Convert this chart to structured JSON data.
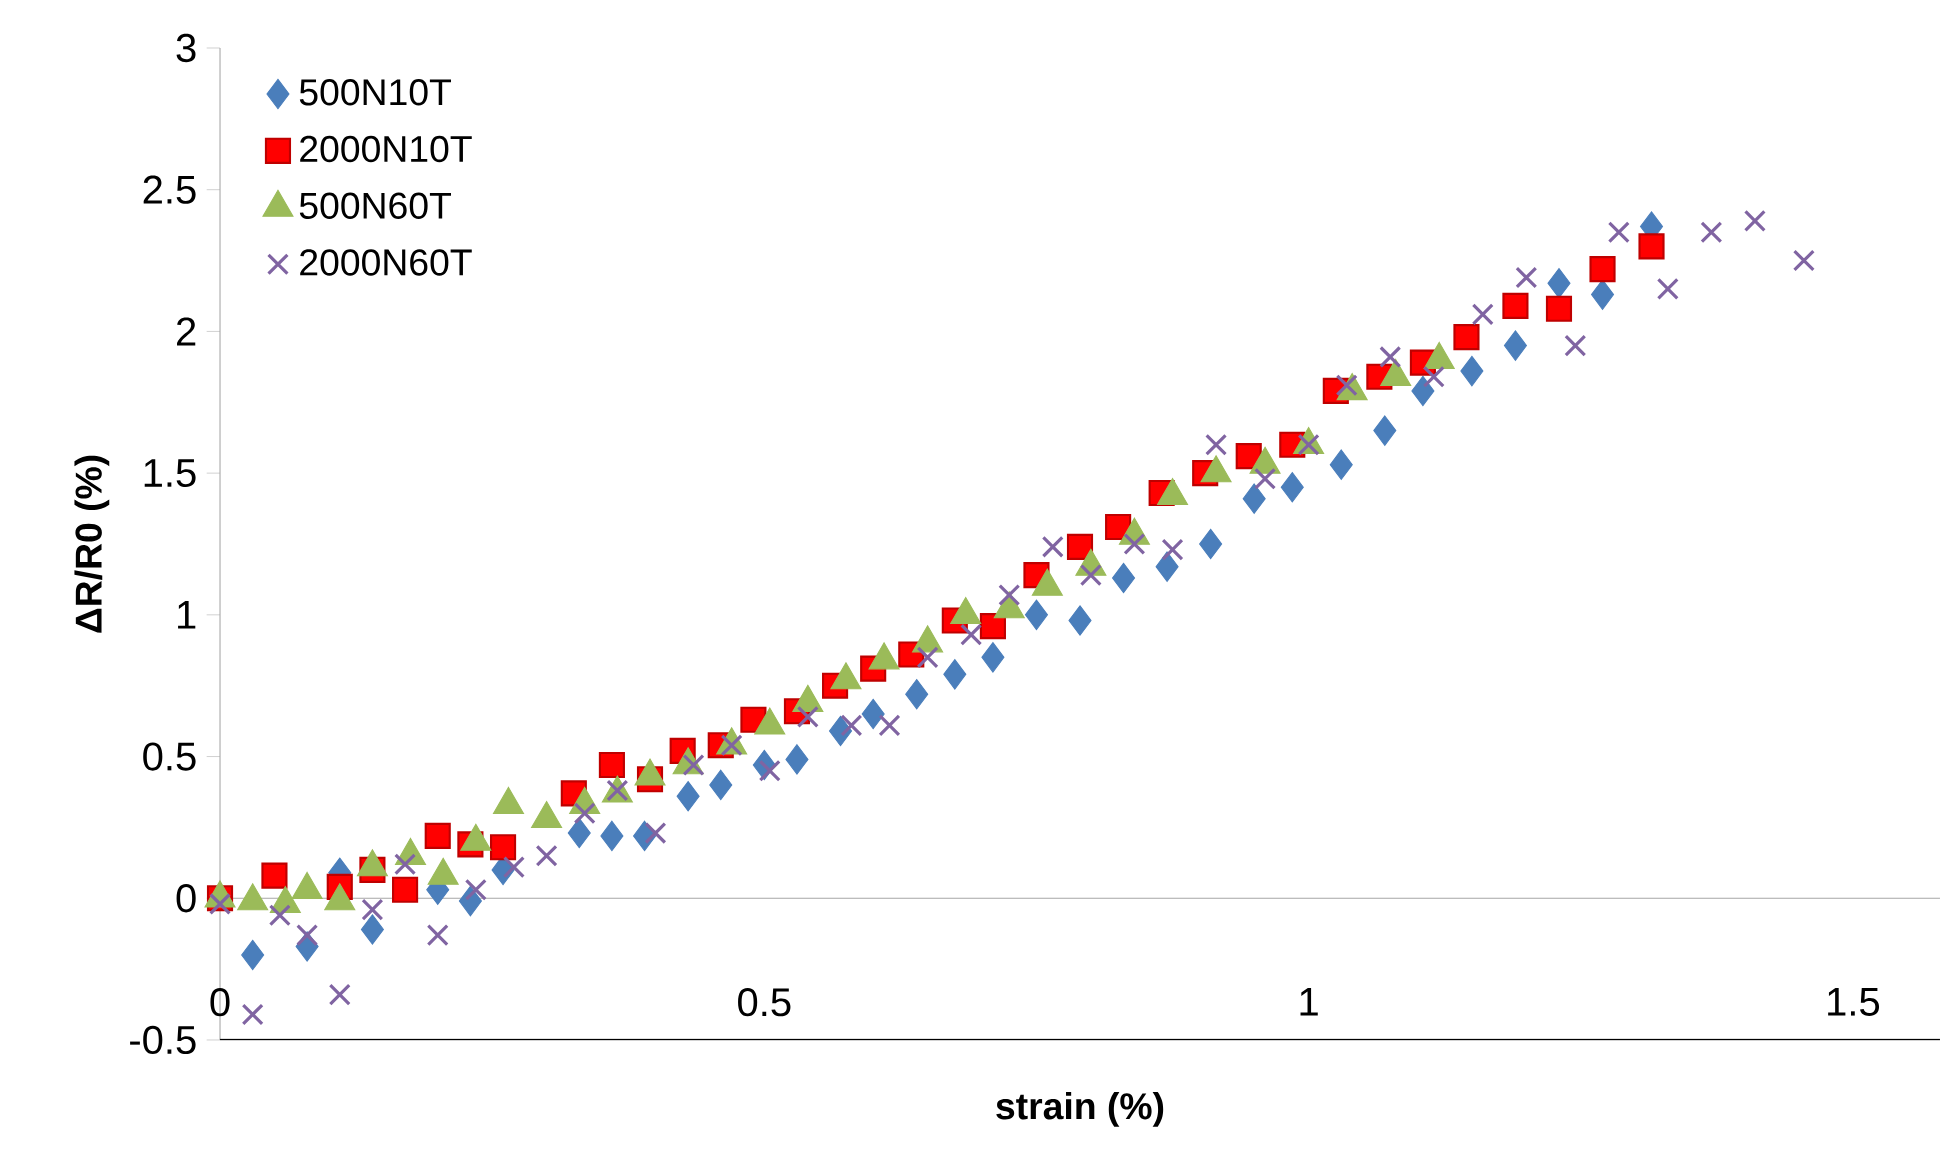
{
  "chart_data": {
    "type": "scatter",
    "xlabel": "strain (%)",
    "ylabel": "ΔR/R0 (%)",
    "xlim": [
      0,
      1.58
    ],
    "ylim": [
      -0.5,
      3
    ],
    "xticks": [
      0,
      0.5,
      1,
      1.5
    ],
    "yticks": [
      -0.5,
      0,
      0.5,
      1,
      1.5,
      2,
      2.5,
      3
    ],
    "ref_lines": [
      {
        "axis": "y",
        "value": 0,
        "color": "#a6a6a6"
      }
    ],
    "legend": "top left",
    "series": [
      {
        "name": "500N10T",
        "color": "#4a7ebb",
        "marker": "diamond",
        "x": [
          0.03,
          0.08,
          0.11,
          0.14,
          0.2,
          0.23,
          0.26,
          0.33,
          0.36,
          0.39,
          0.43,
          0.46,
          0.5,
          0.53,
          0.57,
          0.6,
          0.64,
          0.675,
          0.71,
          0.75,
          0.79,
          0.83,
          0.87,
          0.91,
          0.95,
          0.985,
          1.03,
          1.07,
          1.105,
          1.15,
          1.19,
          1.23,
          1.27,
          1.315
        ],
        "values": [
          -0.2,
          -0.17,
          0.09,
          -0.11,
          0.03,
          -0.01,
          0.1,
          0.23,
          0.22,
          0.22,
          0.36,
          0.4,
          0.47,
          0.49,
          0.59,
          0.65,
          0.72,
          0.79,
          0.85,
          1.0,
          0.98,
          1.13,
          1.17,
          1.25,
          1.41,
          1.45,
          1.53,
          1.65,
          1.79,
          1.86,
          1.95,
          2.17,
          2.13,
          2.37
        ]
      },
      {
        "name": "2000N10T",
        "color": "#ff0000",
        "marker": "square",
        "x": [
          0,
          0.05,
          0.11,
          0.14,
          0.17,
          0.2,
          0.23,
          0.26,
          0.325,
          0.36,
          0.395,
          0.425,
          0.46,
          0.49,
          0.53,
          0.565,
          0.6,
          0.635,
          0.675,
          0.71,
          0.75,
          0.79,
          0.825,
          0.865,
          0.905,
          0.945,
          0.985,
          1.025,
          1.065,
          1.105,
          1.145,
          1.19,
          1.23,
          1.27,
          1.315
        ],
        "values": [
          0,
          0.08,
          0.04,
          0.1,
          0.03,
          0.22,
          0.19,
          0.18,
          0.37,
          0.47,
          0.42,
          0.52,
          0.54,
          0.63,
          0.66,
          0.75,
          0.81,
          0.86,
          0.98,
          0.96,
          1.14,
          1.24,
          1.31,
          1.43,
          1.5,
          1.56,
          1.6,
          1.79,
          1.84,
          1.89,
          1.98,
          2.09,
          2.08,
          2.22,
          2.3
        ]
      },
      {
        "name": "500N60T",
        "color": "#9bbb59",
        "marker": "triangle",
        "x": [
          0,
          0.03,
          0.06,
          0.08,
          0.11,
          0.14,
          0.175,
          0.205,
          0.235,
          0.265,
          0.3,
          0.335,
          0.365,
          0.395,
          0.43,
          0.47,
          0.505,
          0.54,
          0.575,
          0.61,
          0.65,
          0.685,
          0.725,
          0.76,
          0.8,
          0.84,
          0.875,
          0.915,
          0.96,
          1.0,
          1.04,
          1.08,
          1.12
        ],
        "values": [
          0,
          -0.01,
          -0.02,
          0.03,
          -0.01,
          0.11,
          0.15,
          0.08,
          0.2,
          0.33,
          0.28,
          0.33,
          0.37,
          0.43,
          0.47,
          0.54,
          0.61,
          0.69,
          0.77,
          0.84,
          0.9,
          1.0,
          1.02,
          1.1,
          1.17,
          1.28,
          1.42,
          1.5,
          1.53,
          1.6,
          1.79,
          1.84,
          1.9
        ]
      },
      {
        "name": "2000N60T",
        "color": "#8064a2",
        "marker": "cross",
        "x": [
          0,
          0.03,
          0.055,
          0.08,
          0.11,
          0.14,
          0.17,
          0.2,
          0.235,
          0.27,
          0.3,
          0.335,
          0.365,
          0.4,
          0.435,
          0.47,
          0.505,
          0.54,
          0.58,
          0.615,
          0.65,
          0.69,
          0.725,
          0.765,
          0.8,
          0.84,
          0.875,
          0.915,
          0.96,
          1.0,
          1.035,
          1.075,
          1.115,
          1.16,
          1.2,
          1.245,
          1.285,
          1.33,
          1.37,
          1.41,
          1.455
        ],
        "values": [
          -0.02,
          -0.41,
          -0.06,
          -0.13,
          -0.34,
          -0.04,
          0.12,
          -0.13,
          0.03,
          0.11,
          0.15,
          0.3,
          0.38,
          0.23,
          0.47,
          0.54,
          0.45,
          0.64,
          0.61,
          0.61,
          0.85,
          0.93,
          1.07,
          1.24,
          1.14,
          1.25,
          1.23,
          1.6,
          1.48,
          1.6,
          1.81,
          1.91,
          1.84,
          2.06,
          2.19,
          1.95,
          2.35,
          2.15,
          2.35,
          2.39,
          2.25
        ]
      }
    ]
  }
}
